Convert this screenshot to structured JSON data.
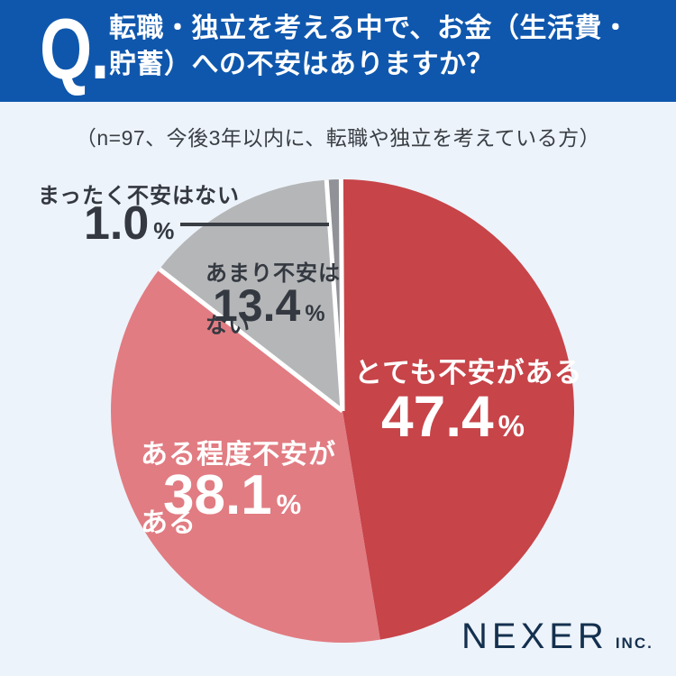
{
  "header": {
    "q_label": "Q.",
    "title_line1": "転職・独立を考える中で、お金（生活費・",
    "title_line2": "貯蓄）への不安はありますか？"
  },
  "subtitle": {
    "text": "（n=97、今後3年以内に、転職や独立を考えている方）"
  },
  "chart_data": {
    "type": "pie",
    "title": "転職・独立を考える中で、お金（生活費・貯蓄）への不安はありますか？",
    "note": "（n=97、今後3年以内に、転職や独立を考えている方）",
    "n": 97,
    "start_angle_deg": 0,
    "direction": "clockwise",
    "center": [
      380,
      456
    ],
    "radius": 257,
    "gap_color": "#ffffff",
    "segments": [
      {
        "label": "とても不安がある",
        "value": 47.4,
        "color": "#c74449",
        "text_color": "#ffffff",
        "separated": false
      },
      {
        "label": "ある程度不安がある",
        "value": 38.1,
        "color": "#e17c82",
        "text_color": "#ffffff",
        "separated": false
      },
      {
        "label": "あまり不安はない",
        "value": 13.4,
        "color": "#b5b6b8",
        "text_color": "#343941",
        "separated": true
      },
      {
        "label": "まったく不安はない",
        "value": 1.0,
        "color": "#919297",
        "text_color": "#343941",
        "separated": true
      }
    ]
  },
  "labels": {
    "percent": "%",
    "very_label": "とても不安がある",
    "very_value": "47.4",
    "some_line1": "ある程度不安が",
    "some_line2": "ある",
    "some_value": "38.1",
    "few_line1": "あまり不安は",
    "few_line2": "ない",
    "few_value": "13.4",
    "none_label": "まったく不安はない",
    "none_value": "1.0"
  },
  "footer": {
    "brand": "NEXER",
    "brand_suffix": "INC."
  },
  "colors": {
    "header_bg": "#0f57ad",
    "page_bg": "#edf3fa",
    "dark_text": "#343941",
    "leader_line": "#393e44",
    "brand_navy": "#14304f"
  }
}
